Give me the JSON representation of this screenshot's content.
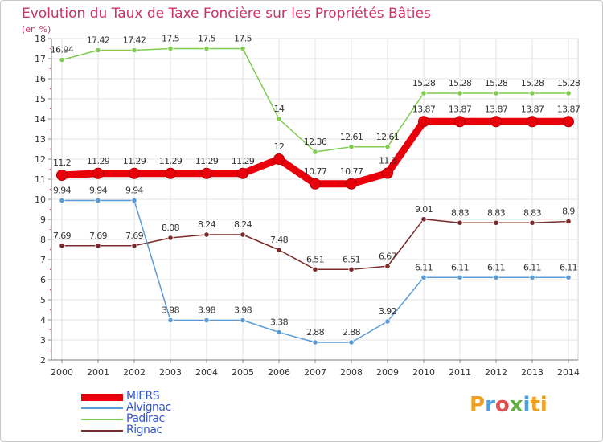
{
  "chart_data": {
    "type": "line",
    "title": "Evolution du Taux de Taxe Foncière sur les Propriétés Bâties",
    "unit_label": "(en %)",
    "xlabel": "",
    "ylabel": "",
    "x": [
      "2000",
      "2001",
      "2002",
      "2003",
      "2004",
      "2005",
      "2006",
      "2007",
      "2008",
      "2009",
      "2010",
      "2011",
      "2012",
      "2013",
      "2014"
    ],
    "ylim": [
      2,
      18
    ],
    "yticks": [
      "2",
      "3",
      "4",
      "5",
      "6",
      "7",
      "8",
      "9",
      "10",
      "11",
      "12",
      "13",
      "14",
      "15",
      "16",
      "17",
      "18"
    ],
    "grid": true,
    "legend_position": "bottom-left",
    "series": [
      {
        "name": "MIERS",
        "color": "#e8000b",
        "values": [
          11.2,
          11.29,
          11.29,
          11.29,
          11.29,
          11.29,
          12,
          10.77,
          10.77,
          11.3,
          13.87,
          13.87,
          13.87,
          13.87,
          13.87
        ],
        "labels": [
          "11.2",
          "11.29",
          "11.29",
          "11.29",
          "11.29",
          "11.29",
          "12",
          "10.77",
          "10.77",
          "11.3",
          "13.87",
          "13.87",
          "13.87",
          "13.87",
          "13.87"
        ]
      },
      {
        "name": "Alvignac",
        "color": "#5b9bd5",
        "values": [
          9.94,
          9.94,
          9.94,
          3.98,
          3.98,
          3.98,
          3.38,
          2.88,
          2.88,
          3.92,
          6.11,
          6.11,
          6.11,
          6.11,
          6.11
        ],
        "labels": [
          "9.94",
          "9.94",
          "9.94",
          "3.98",
          "3.98",
          "3.98",
          "3.38",
          "2.88",
          "2.88",
          "3.92",
          "6.11",
          "6.11",
          "6.11",
          "6.11",
          "6.11"
        ]
      },
      {
        "name": "Padirac",
        "color": "#7fcc50",
        "values": [
          16.94,
          17.42,
          17.42,
          17.5,
          17.5,
          17.5,
          14,
          12.36,
          12.61,
          12.61,
          15.28,
          15.28,
          15.28,
          15.28,
          15.28
        ],
        "labels": [
          "16.94",
          "17.42",
          "17.42",
          "17.5",
          "17.5",
          "17.5",
          "14",
          "12.36",
          "12.61",
          "12.61",
          "15.28",
          "15.28",
          "15.28",
          "15.28",
          "15.28"
        ]
      },
      {
        "name": "Rignac",
        "color": "#7a2a2a",
        "values": [
          7.69,
          7.69,
          7.69,
          8.08,
          8.24,
          8.24,
          7.48,
          6.51,
          6.51,
          6.67,
          9.01,
          8.83,
          8.83,
          8.83,
          8.9
        ],
        "labels": [
          "7.69",
          "7.69",
          "7.69",
          "8.08",
          "8.24",
          "8.24",
          "7.48",
          "6.51",
          "6.51",
          "6.67",
          "9.01",
          "8.83",
          "8.83",
          "8.83",
          "8.9"
        ]
      }
    ]
  },
  "logo": {
    "text": "Proxiti",
    "letters": [
      "P",
      "r",
      "o",
      "x",
      "i",
      "ti"
    ]
  }
}
